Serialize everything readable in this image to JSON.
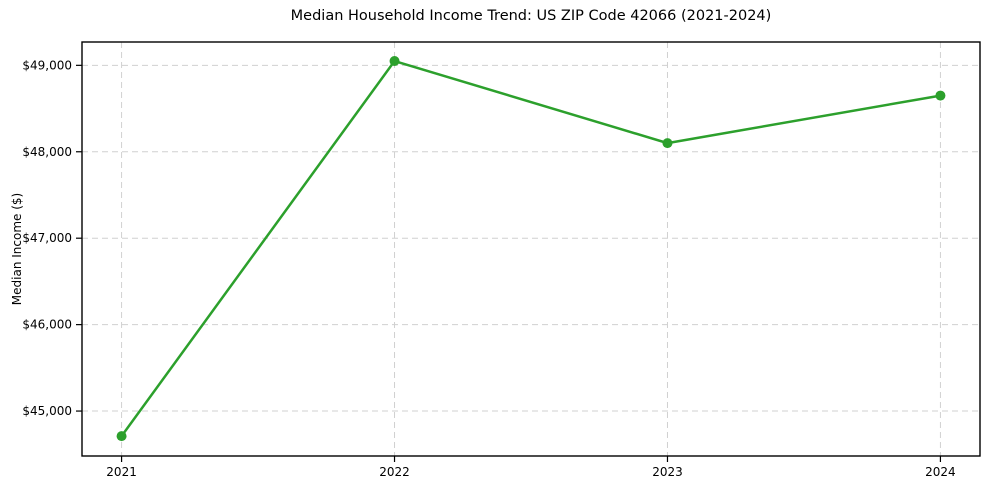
{
  "chart_data": {
    "type": "line",
    "title": "Median Household Income Trend: US ZIP Code 42066 (2021-2024)",
    "xlabel": "",
    "ylabel": "Median Income ($)",
    "x": [
      2021,
      2022,
      2023,
      2024
    ],
    "xtick_labels": [
      "2021",
      "2022",
      "2023",
      "2024"
    ],
    "series": [
      {
        "name": "Median Household Income",
        "values": [
          44710,
          49050,
          48100,
          48650
        ]
      }
    ],
    "yticks": [
      45000,
      46000,
      47000,
      48000,
      49000
    ],
    "ytick_labels": [
      "$45,000",
      "$46,000",
      "$47,000",
      "$48,000",
      "$49,000"
    ],
    "xlim": [
      2020.855,
      2024.145
    ],
    "ylim": [
      44480,
      49270
    ],
    "grid": "both-dashed",
    "legend": "none",
    "marker": "circle",
    "colors": {
      "line": "#2ca02c",
      "marker": "#2ca02c",
      "grid": "#d0d0d0",
      "spine": "#000000",
      "text": "#000000",
      "background": "#ffffff"
    }
  }
}
